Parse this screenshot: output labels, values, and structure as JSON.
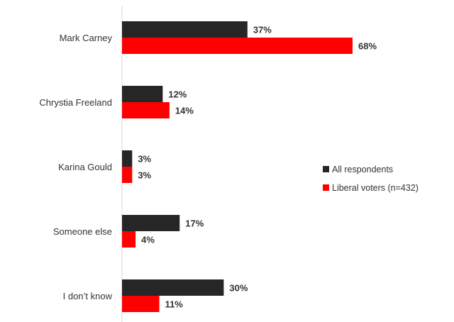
{
  "chart_data": {
    "type": "bar",
    "orientation": "horizontal",
    "categories": [
      "Mark Carney",
      "Chrystia Freeland",
      "Karina Gould",
      "Someone else",
      "I don’t know"
    ],
    "series": [
      {
        "name": "All respondents",
        "values": [
          37,
          12,
          3,
          17,
          30
        ],
        "labels": [
          "37%",
          "12%",
          "3%",
          "17%",
          "30%"
        ],
        "color": "#262626"
      },
      {
        "name": "Liberal voters (n=432)",
        "values": [
          68,
          14,
          3,
          4,
          11
        ],
        "labels": [
          "68%",
          "14%",
          "3%",
          "4%",
          "11%"
        ],
        "color": "#ff0000"
      }
    ],
    "xlim": [
      0,
      68
    ],
    "grid": false,
    "legend_position": "right"
  }
}
